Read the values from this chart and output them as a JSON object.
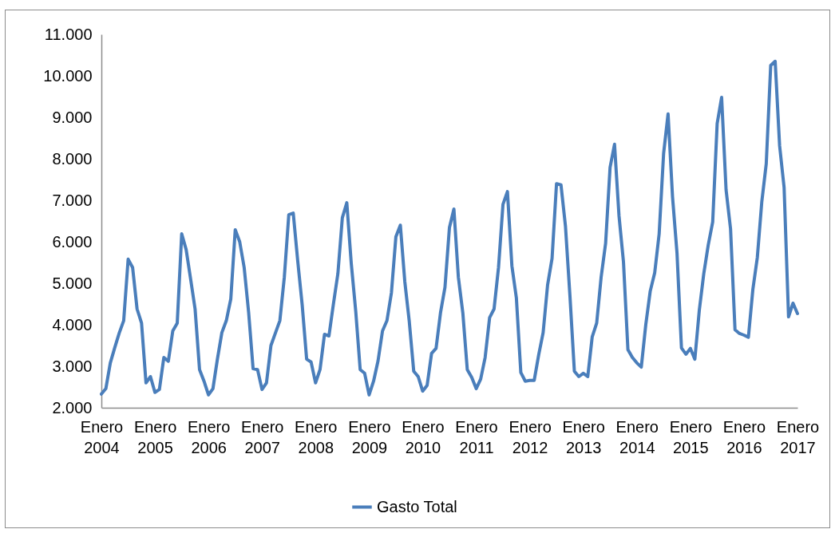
{
  "chart_data": {
    "type": "line",
    "legend": "bottom",
    "line_style": "solid",
    "categories": [
      "Enero 2004",
      null,
      null,
      null,
      null,
      null,
      null,
      null,
      null,
      null,
      null,
      null,
      "Enero 2005",
      null,
      null,
      null,
      null,
      null,
      null,
      null,
      null,
      null,
      null,
      null,
      "Enero 2006",
      null,
      null,
      null,
      null,
      null,
      null,
      null,
      null,
      null,
      null,
      null,
      "Enero 2007",
      null,
      null,
      null,
      null,
      null,
      null,
      null,
      null,
      null,
      null,
      null,
      "Enero 2008",
      null,
      null,
      null,
      null,
      null,
      null,
      null,
      null,
      null,
      null,
      null,
      "Enero 2009",
      null,
      null,
      null,
      null,
      null,
      null,
      null,
      null,
      null,
      null,
      null,
      "Enero 2010",
      null,
      null,
      null,
      null,
      null,
      null,
      null,
      null,
      null,
      null,
      null,
      "Enero 2011",
      null,
      null,
      null,
      null,
      null,
      null,
      null,
      null,
      null,
      null,
      null,
      "Enero 2012",
      null,
      null,
      null,
      null,
      null,
      null,
      null,
      null,
      null,
      null,
      null,
      "Enero 2013",
      null,
      null,
      null,
      null,
      null,
      null,
      null,
      null,
      null,
      null,
      null,
      "Enero 2014",
      null,
      null,
      null,
      null,
      null,
      null,
      null,
      null,
      null,
      null,
      null,
      "Enero 2015",
      null,
      null,
      null,
      null,
      null,
      null,
      null,
      null,
      null,
      null,
      null,
      "Enero 2016",
      null,
      null,
      null,
      null,
      null,
      null,
      null,
      null,
      null,
      null,
      null,
      "Enero 2017"
    ],
    "ylim": [
      2000,
      11000
    ],
    "yticks": [
      {
        "value": 2000,
        "label": "2.000"
      },
      {
        "value": 3000,
        "label": "3.000"
      },
      {
        "value": 4000,
        "label": "4.000"
      },
      {
        "value": 5000,
        "label": "5.000"
      },
      {
        "value": 6000,
        "label": "6.000"
      },
      {
        "value": 7000,
        "label": "7.000"
      },
      {
        "value": 8000,
        "label": "8.000"
      },
      {
        "value": 9000,
        "label": "9.000"
      },
      {
        "value": 10000,
        "label": "10.000"
      },
      {
        "value": 11000,
        "label": "11.000"
      }
    ],
    "series": [
      {
        "name": "Gasto Total",
        "color": "#4a7ebb",
        "values": [
          2330,
          2460,
          3080,
          3450,
          3800,
          4100,
          5580,
          5380,
          4380,
          4040,
          2600,
          2750,
          2370,
          2440,
          3210,
          3120,
          3850,
          4040,
          6190,
          5810,
          5100,
          4380,
          2920,
          2640,
          2310,
          2460,
          3170,
          3810,
          4100,
          4620,
          6290,
          6000,
          5380,
          4300,
          2940,
          2920,
          2440,
          2600,
          3500,
          3800,
          4100,
          5150,
          6650,
          6690,
          5540,
          4480,
          3170,
          3100,
          2600,
          2920,
          3770,
          3730,
          4500,
          5230,
          6580,
          6940,
          5480,
          4330,
          2920,
          2830,
          2310,
          2640,
          3130,
          3850,
          4100,
          4770,
          6120,
          6400,
          5040,
          4080,
          2880,
          2750,
          2400,
          2540,
          3310,
          3430,
          4290,
          4900,
          6340,
          6790,
          5150,
          4290,
          2920,
          2730,
          2460,
          2690,
          3210,
          4170,
          4380,
          5380,
          6900,
          7210,
          5420,
          4650,
          2850,
          2640,
          2660,
          2660,
          3270,
          3810,
          4960,
          5600,
          7400,
          7370,
          6380,
          4710,
          2880,
          2750,
          2830,
          2750,
          3710,
          4040,
          5150,
          5960,
          7790,
          8350,
          6630,
          5520,
          3400,
          3210,
          3080,
          2980,
          4000,
          4810,
          5250,
          6190,
          8130,
          9080,
          7080,
          5730,
          3440,
          3290,
          3430,
          3170,
          4350,
          5230,
          5920,
          6480,
          8850,
          9480,
          7250,
          6310,
          3880,
          3790,
          3750,
          3700,
          4850,
          5620,
          6960,
          7880,
          10250,
          10350,
          8310,
          7310,
          4190,
          4520,
          4270
        ]
      }
    ]
  }
}
